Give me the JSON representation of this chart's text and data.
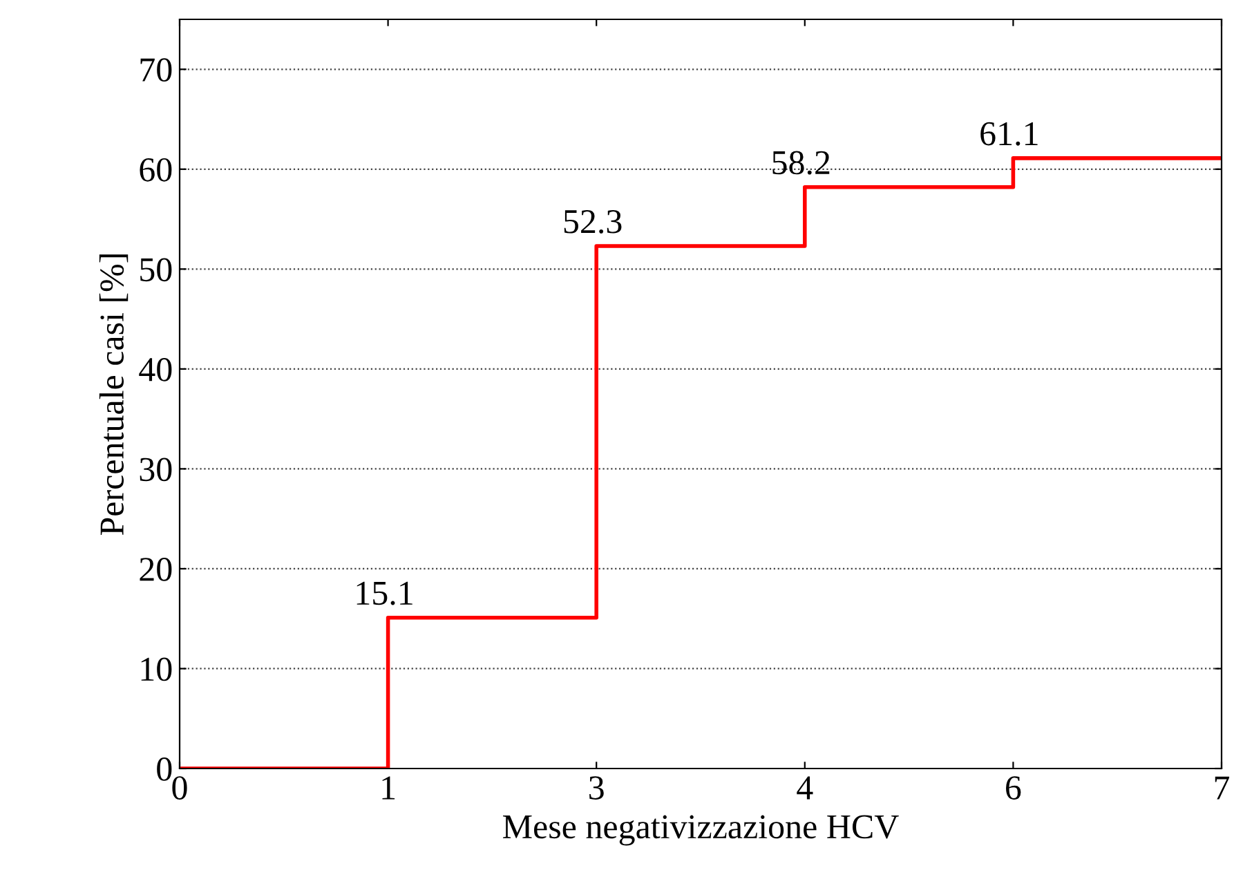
{
  "chart_data": {
    "type": "step",
    "xlabel": "Mese negativizzazione HCV",
    "ylabel": "Percentuale casi [%]",
    "categories": [
      "0",
      "1",
      "3",
      "4",
      "6",
      "7"
    ],
    "series": [
      {
        "color": "#ff0000",
        "values": [
          0,
          15.1,
          52.3,
          58.2,
          61.1,
          61.1
        ],
        "value_labels": [
          null,
          "15.1",
          "52.3",
          "58.2",
          "61.1",
          null
        ]
      }
    ],
    "ylim": [
      0,
      75
    ],
    "yticks": [
      0,
      10,
      20,
      30,
      40,
      50,
      60,
      70
    ],
    "grid": "y",
    "legend": false,
    "line_style": "solid",
    "marker": "none"
  }
}
